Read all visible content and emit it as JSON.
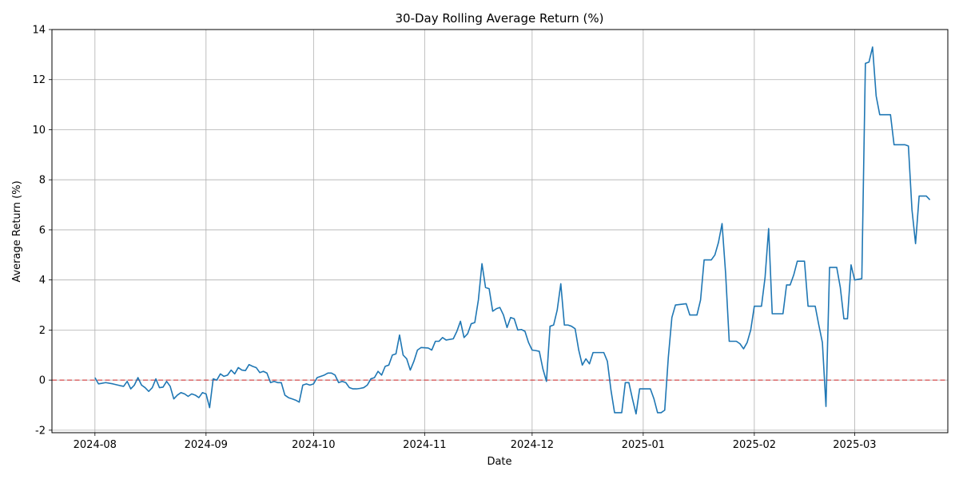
{
  "chart_data": {
    "type": "line",
    "title": "30-Day Rolling Average Return (%)",
    "xlabel": "Date",
    "ylabel": "Average Return (%)",
    "x_ticks": [
      "2024-08",
      "2024-09",
      "2024-10",
      "2024-11",
      "2024-12",
      "2025-01",
      "2025-02",
      "2025-03"
    ],
    "y_ticks": [
      -2,
      0,
      2,
      4,
      6,
      8,
      10,
      12,
      14
    ],
    "xlim": [
      "2024-07-20",
      "2025-03-27"
    ],
    "ylim": [
      -2.1,
      14.0
    ],
    "grid": true,
    "reference_line": {
      "y": 0,
      "color": "#d62728",
      "style": "dashed"
    },
    "series": [
      {
        "color": "#1f77b4",
        "points": [
          [
            "2024-08-01",
            0.1
          ],
          [
            "2024-08-02",
            -0.15
          ],
          [
            "2024-08-04",
            -0.1
          ],
          [
            "2024-08-06",
            -0.15
          ],
          [
            "2024-08-08",
            -0.22
          ],
          [
            "2024-08-09",
            -0.25
          ],
          [
            "2024-08-10",
            -0.05
          ],
          [
            "2024-08-11",
            -0.35
          ],
          [
            "2024-08-12",
            -0.2
          ],
          [
            "2024-08-13",
            0.1
          ],
          [
            "2024-08-14",
            -0.2
          ],
          [
            "2024-08-15",
            -0.3
          ],
          [
            "2024-08-16",
            -0.45
          ],
          [
            "2024-08-17",
            -0.3
          ],
          [
            "2024-08-18",
            0.05
          ],
          [
            "2024-08-19",
            -0.3
          ],
          [
            "2024-08-20",
            -0.28
          ],
          [
            "2024-08-21",
            -0.05
          ],
          [
            "2024-08-22",
            -0.25
          ],
          [
            "2024-08-23",
            -0.75
          ],
          [
            "2024-08-24",
            -0.6
          ],
          [
            "2024-08-25",
            -0.5
          ],
          [
            "2024-08-26",
            -0.55
          ],
          [
            "2024-08-27",
            -0.65
          ],
          [
            "2024-08-28",
            -0.55
          ],
          [
            "2024-08-29",
            -0.6
          ],
          [
            "2024-08-30",
            -0.7
          ],
          [
            "2024-08-31",
            -0.5
          ],
          [
            "2024-09-01",
            -0.55
          ],
          [
            "2024-09-02",
            -1.1
          ],
          [
            "2024-09-03",
            0.05
          ],
          [
            "2024-09-04",
            0.0
          ],
          [
            "2024-09-05",
            0.25
          ],
          [
            "2024-09-06",
            0.15
          ],
          [
            "2024-09-07",
            0.2
          ],
          [
            "2024-09-08",
            0.4
          ],
          [
            "2024-09-09",
            0.25
          ],
          [
            "2024-09-10",
            0.5
          ],
          [
            "2024-09-11",
            0.4
          ],
          [
            "2024-09-12",
            0.38
          ],
          [
            "2024-09-13",
            0.62
          ],
          [
            "2024-09-14",
            0.55
          ],
          [
            "2024-09-15",
            0.5
          ],
          [
            "2024-09-16",
            0.3
          ],
          [
            "2024-09-17",
            0.35
          ],
          [
            "2024-09-18",
            0.28
          ],
          [
            "2024-09-19",
            -0.1
          ],
          [
            "2024-09-20",
            -0.05
          ],
          [
            "2024-09-21",
            -0.1
          ],
          [
            "2024-09-22",
            -0.1
          ],
          [
            "2024-09-23",
            -0.6
          ],
          [
            "2024-09-24",
            -0.7
          ],
          [
            "2024-09-25",
            -0.75
          ],
          [
            "2024-09-26",
            -0.8
          ],
          [
            "2024-09-27",
            -0.88
          ],
          [
            "2024-09-28",
            -0.2
          ],
          [
            "2024-09-29",
            -0.15
          ],
          [
            "2024-09-30",
            -0.2
          ],
          [
            "2024-10-01",
            -0.15
          ],
          [
            "2024-10-02",
            0.1
          ],
          [
            "2024-10-04",
            0.2
          ],
          [
            "2024-10-05",
            0.28
          ],
          [
            "2024-10-06",
            0.28
          ],
          [
            "2024-10-07",
            0.2
          ],
          [
            "2024-10-08",
            -0.1
          ],
          [
            "2024-10-09",
            -0.05
          ],
          [
            "2024-10-10",
            -0.1
          ],
          [
            "2024-10-11",
            -0.3
          ],
          [
            "2024-10-12",
            -0.35
          ],
          [
            "2024-10-13",
            -0.35
          ],
          [
            "2024-10-14",
            -0.33
          ],
          [
            "2024-10-15",
            -0.3
          ],
          [
            "2024-10-16",
            -0.2
          ],
          [
            "2024-10-17",
            0.05
          ],
          [
            "2024-10-18",
            0.1
          ],
          [
            "2024-10-19",
            0.35
          ],
          [
            "2024-10-20",
            0.2
          ],
          [
            "2024-10-21",
            0.55
          ],
          [
            "2024-10-22",
            0.6
          ],
          [
            "2024-10-23",
            1.0
          ],
          [
            "2024-10-24",
            1.05
          ],
          [
            "2024-10-25",
            1.8
          ],
          [
            "2024-10-26",
            1.0
          ],
          [
            "2024-10-27",
            0.85
          ],
          [
            "2024-10-28",
            0.4
          ],
          [
            "2024-10-29",
            0.75
          ],
          [
            "2024-10-30",
            1.2
          ],
          [
            "2024-10-31",
            1.3
          ],
          [
            "2024-11-02",
            1.28
          ],
          [
            "2024-11-03",
            1.2
          ],
          [
            "2024-11-04",
            1.55
          ],
          [
            "2024-11-05",
            1.55
          ],
          [
            "2024-11-06",
            1.7
          ],
          [
            "2024-11-07",
            1.6
          ],
          [
            "2024-11-09",
            1.65
          ],
          [
            "2024-11-10",
            1.95
          ],
          [
            "2024-11-11",
            2.35
          ],
          [
            "2024-11-12",
            1.7
          ],
          [
            "2024-11-13",
            1.85
          ],
          [
            "2024-11-14",
            2.25
          ],
          [
            "2024-11-15",
            2.3
          ],
          [
            "2024-11-16",
            3.2
          ],
          [
            "2024-11-17",
            4.65
          ],
          [
            "2024-11-18",
            3.7
          ],
          [
            "2024-11-19",
            3.65
          ],
          [
            "2024-11-20",
            2.75
          ],
          [
            "2024-11-21",
            2.85
          ],
          [
            "2024-11-22",
            2.9
          ],
          [
            "2024-11-23",
            2.6
          ],
          [
            "2024-11-24",
            2.1
          ],
          [
            "2024-11-25",
            2.5
          ],
          [
            "2024-11-26",
            2.45
          ],
          [
            "2024-11-27",
            2.0
          ],
          [
            "2024-11-28",
            2.02
          ],
          [
            "2024-11-29",
            1.95
          ],
          [
            "2024-11-30",
            1.5
          ],
          [
            "2024-12-01",
            1.2
          ],
          [
            "2024-12-02",
            1.18
          ],
          [
            "2024-12-03",
            1.15
          ],
          [
            "2024-12-04",
            0.45
          ],
          [
            "2024-12-05",
            -0.05
          ],
          [
            "2024-12-06",
            2.15
          ],
          [
            "2024-12-07",
            2.2
          ],
          [
            "2024-12-08",
            2.8
          ],
          [
            "2024-12-09",
            3.85
          ],
          [
            "2024-12-10",
            2.2
          ],
          [
            "2024-12-11",
            2.2
          ],
          [
            "2024-12-12",
            2.15
          ],
          [
            "2024-12-13",
            2.05
          ],
          [
            "2024-12-14",
            1.2
          ],
          [
            "2024-12-15",
            0.6
          ],
          [
            "2024-12-16",
            0.85
          ],
          [
            "2024-12-17",
            0.65
          ],
          [
            "2024-12-18",
            1.1
          ],
          [
            "2024-12-21",
            1.1
          ],
          [
            "2024-12-22",
            0.75
          ],
          [
            "2024-12-23",
            -0.4
          ],
          [
            "2024-12-24",
            -1.3
          ],
          [
            "2024-12-26",
            -1.3
          ],
          [
            "2024-12-27",
            -0.1
          ],
          [
            "2024-12-28",
            -0.1
          ],
          [
            "2024-12-29",
            -0.75
          ],
          [
            "2024-12-30",
            -1.35
          ],
          [
            "2024-12-31",
            -0.35
          ],
          [
            "2025-01-01",
            -0.35
          ],
          [
            "2025-01-03",
            -0.35
          ],
          [
            "2025-01-04",
            -0.75
          ],
          [
            "2025-01-05",
            -1.3
          ],
          [
            "2025-01-06",
            -1.3
          ],
          [
            "2025-01-07",
            -1.2
          ],
          [
            "2025-01-08",
            0.9
          ],
          [
            "2025-01-09",
            2.5
          ],
          [
            "2025-01-10",
            3.0
          ],
          [
            "2025-01-13",
            3.05
          ],
          [
            "2025-01-14",
            2.6
          ],
          [
            "2025-01-16",
            2.6
          ],
          [
            "2025-01-17",
            3.2
          ],
          [
            "2025-01-18",
            4.8
          ],
          [
            "2025-01-20",
            4.8
          ],
          [
            "2025-01-21",
            5.0
          ],
          [
            "2025-01-22",
            5.5
          ],
          [
            "2025-01-23",
            6.25
          ],
          [
            "2025-01-24",
            4.25
          ],
          [
            "2025-01-25",
            1.55
          ],
          [
            "2025-01-27",
            1.55
          ],
          [
            "2025-01-28",
            1.45
          ],
          [
            "2025-01-29",
            1.25
          ],
          [
            "2025-01-30",
            1.5
          ],
          [
            "2025-01-31",
            2.0
          ],
          [
            "2025-02-01",
            2.95
          ],
          [
            "2025-02-03",
            2.95
          ],
          [
            "2025-02-04",
            4.1
          ],
          [
            "2025-02-05",
            6.05
          ],
          [
            "2025-02-06",
            2.65
          ],
          [
            "2025-02-09",
            2.65
          ],
          [
            "2025-02-10",
            3.8
          ],
          [
            "2025-02-11",
            3.8
          ],
          [
            "2025-02-12",
            4.2
          ],
          [
            "2025-02-13",
            4.75
          ],
          [
            "2025-02-15",
            4.75
          ],
          [
            "2025-02-16",
            2.95
          ],
          [
            "2025-02-18",
            2.95
          ],
          [
            "2025-02-19",
            2.2
          ],
          [
            "2025-02-20",
            1.5
          ],
          [
            "2025-02-21",
            -1.05
          ],
          [
            "2025-02-22",
            4.5
          ],
          [
            "2025-02-24",
            4.5
          ],
          [
            "2025-02-25",
            3.7
          ],
          [
            "2025-02-26",
            2.45
          ],
          [
            "2025-02-27",
            2.45
          ],
          [
            "2025-02-28",
            4.6
          ],
          [
            "2025-03-01",
            4.0
          ],
          [
            "2025-03-03",
            4.05
          ],
          [
            "2025-03-04",
            12.65
          ],
          [
            "2025-03-05",
            12.7
          ],
          [
            "2025-03-06",
            13.3
          ],
          [
            "2025-03-07",
            11.35
          ],
          [
            "2025-03-08",
            10.6
          ],
          [
            "2025-03-10",
            10.6
          ],
          [
            "2025-03-11",
            10.6
          ],
          [
            "2025-03-12",
            9.4
          ],
          [
            "2025-03-13",
            9.4
          ],
          [
            "2025-03-15",
            9.4
          ],
          [
            "2025-03-16",
            9.35
          ],
          [
            "2025-03-17",
            6.8
          ],
          [
            "2025-03-18",
            5.45
          ],
          [
            "2025-03-19",
            7.35
          ],
          [
            "2025-03-20",
            7.35
          ],
          [
            "2025-03-21",
            7.35
          ],
          [
            "2025-03-22",
            7.2
          ]
        ]
      }
    ]
  }
}
